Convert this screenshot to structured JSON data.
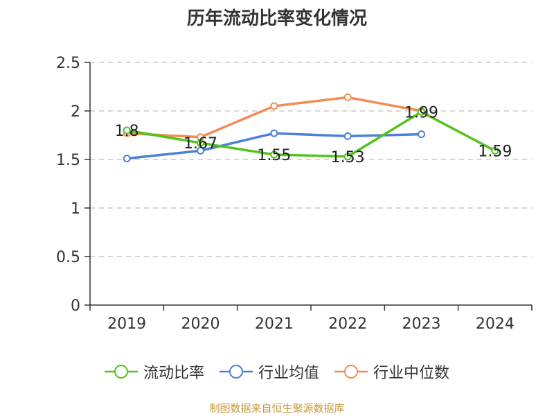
{
  "chart_data": {
    "type": "line",
    "title": "历年流动比率变化情况",
    "categories": [
      "2019",
      "2020",
      "2021",
      "2022",
      "2023",
      "2024"
    ],
    "ylim": [
      0,
      2.5
    ],
    "yticks": [
      "0",
      "0.5",
      "1",
      "1.5",
      "2",
      "2.5"
    ],
    "grid": true,
    "legend_position": "bottom",
    "series": [
      {
        "name": "流动比率",
        "color": "#52c41a",
        "values": [
          1.8,
          1.67,
          1.55,
          1.53,
          1.99,
          1.59
        ],
        "labels": [
          "1.8",
          "1.67",
          "1.55",
          "1.53",
          "1.99",
          "1.59"
        ]
      },
      {
        "name": "行业均值",
        "color": "#4e7fd9",
        "values": [
          1.51,
          1.59,
          1.77,
          1.74,
          1.76,
          null
        ]
      },
      {
        "name": "行业中位数",
        "color": "#f28c56",
        "values": [
          1.77,
          1.73,
          2.05,
          2.14,
          2.0,
          null
        ]
      }
    ]
  },
  "source_note": "制图数据来自恒生聚源数据库"
}
